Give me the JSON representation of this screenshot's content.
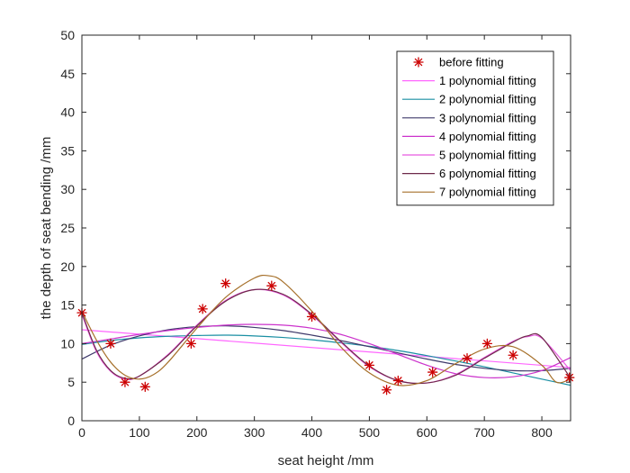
{
  "chart_data": {
    "type": "line",
    "xlabel": "seat height  /mm",
    "ylabel": "the depth of seat bending  /mm",
    "xlim": [
      0,
      850
    ],
    "ylim": [
      0,
      50
    ],
    "xticks": [
      0,
      100,
      200,
      300,
      400,
      500,
      600,
      700,
      800
    ],
    "yticks": [
      0,
      5,
      10,
      15,
      20,
      25,
      30,
      35,
      40,
      45,
      50
    ],
    "grid": false,
    "legend_position": "top-right",
    "scatter": {
      "name": "before fitting",
      "color": "#cc0000",
      "marker": "asterisk",
      "x": [
        0,
        50,
        75,
        110,
        190,
        210,
        250,
        330,
        400,
        500,
        530,
        550,
        610,
        670,
        705,
        750,
        848
      ],
      "y": [
        14,
        10,
        5,
        4.4,
        10,
        14.5,
        17.8,
        17.5,
        13.5,
        7.2,
        4,
        5.2,
        6.3,
        8.1,
        10,
        8.5,
        5.6
      ]
    },
    "series": [
      {
        "name": "1 polynomial fitting",
        "color": "#ff66ff",
        "x": [
          0,
          850
        ],
        "y": [
          11.8,
          6.9
        ]
      },
      {
        "name": "2 polynomial fitting",
        "color": "#1a8fa3",
        "x": [
          0,
          50,
          100,
          150,
          200,
          250,
          300,
          350,
          400,
          450,
          500,
          550,
          600,
          650,
          700,
          750,
          800,
          850
        ],
        "y": [
          9.9,
          10.4,
          10.75,
          10.95,
          11.05,
          11.1,
          11.0,
          10.8,
          10.5,
          10.1,
          9.65,
          9.1,
          8.45,
          7.75,
          7.0,
          6.2,
          5.4,
          4.6
        ]
      },
      {
        "name": "3 polynomial fitting",
        "color": "#3f3a6b",
        "x": [
          0,
          50,
          100,
          150,
          200,
          250,
          300,
          350,
          400,
          450,
          500,
          550,
          600,
          650,
          700,
          750,
          800,
          850
        ],
        "y": [
          8.0,
          9.8,
          11.0,
          11.8,
          12.2,
          12.3,
          12.1,
          11.7,
          11.1,
          10.4,
          9.6,
          8.8,
          8.0,
          7.3,
          6.8,
          6.5,
          6.5,
          6.8
        ]
      },
      {
        "name": "4 polynomial fitting",
        "color": "#cc33cc",
        "x": [
          0,
          50,
          100,
          150,
          200,
          250,
          300,
          350,
          400,
          450,
          500,
          550,
          600,
          650,
          700,
          750,
          800,
          850
        ],
        "y": [
          10.0,
          10.6,
          11.2,
          11.7,
          12.1,
          12.4,
          12.5,
          12.4,
          12.0,
          11.2,
          10.0,
          8.6,
          7.2,
          6.1,
          5.6,
          5.7,
          6.5,
          8.2
        ]
      },
      {
        "name": "5 polynomial fitting",
        "color": "#e85ae0",
        "x": [
          0,
          25,
          50,
          75,
          100,
          150,
          200,
          250,
          300,
          350,
          400,
          450,
          500,
          550,
          600,
          650,
          700,
          750,
          775,
          800,
          850
        ],
        "y": [
          13.8,
          9.0,
          6.4,
          5.4,
          5.8,
          8.6,
          12.4,
          15.6,
          17.0,
          16.3,
          13.7,
          10.2,
          7.0,
          5.2,
          4.9,
          6.0,
          8.2,
          10.3,
          10.9,
          10.7,
          6.5
        ]
      },
      {
        "name": "6 polynomial fitting",
        "color": "#6e2a4a",
        "x": [
          0,
          25,
          50,
          75,
          100,
          150,
          200,
          250,
          300,
          350,
          400,
          450,
          500,
          550,
          600,
          650,
          700,
          750,
          775,
          800,
          850
        ],
        "y": [
          14.0,
          9.2,
          6.5,
          5.5,
          5.8,
          8.5,
          12.3,
          15.5,
          17.0,
          16.4,
          13.8,
          10.3,
          7.1,
          5.2,
          4.9,
          5.9,
          8.1,
          10.2,
          11.0,
          10.8,
          5.5
        ]
      },
      {
        "name": "7 polynomial fitting",
        "color": "#a6702a",
        "x": [
          0,
          25,
          50,
          75,
          100,
          125,
          150,
          200,
          250,
          300,
          325,
          350,
          400,
          450,
          500,
          550,
          600,
          650,
          700,
          750,
          800,
          825,
          850
        ],
        "y": [
          14.2,
          10.5,
          7.6,
          5.9,
          5.4,
          6.0,
          7.6,
          12.0,
          16.0,
          18.5,
          18.8,
          18.0,
          14.2,
          9.6,
          6.2,
          4.6,
          5.2,
          7.4,
          9.3,
          9.6,
          7.2,
          5.0,
          5.4
        ]
      }
    ]
  }
}
